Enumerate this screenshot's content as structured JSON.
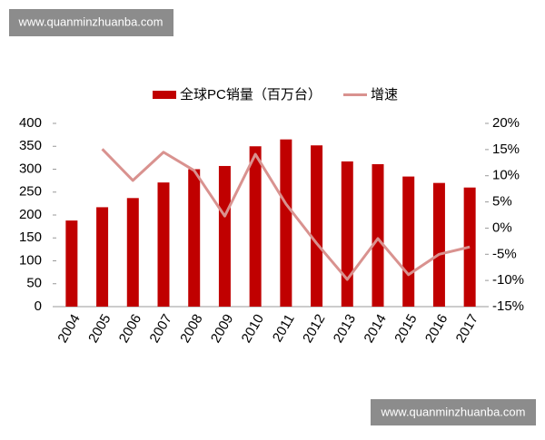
{
  "watermark_top": "www.quanminzhuanba.com",
  "watermark_bottom": "www.quanminzhuanba.com",
  "chart_data": {
    "type": "bar-line",
    "categories": [
      "2004",
      "2005",
      "2006",
      "2007",
      "2008",
      "2009",
      "2010",
      "2011",
      "2012",
      "2013",
      "2014",
      "2015",
      "2016",
      "2017"
    ],
    "series": [
      {
        "name": "全球PC销量（百万台）",
        "color": "#c00000",
        "type": "bar",
        "values": [
          188,
          217,
          237,
          271,
          300,
          307,
          350,
          365,
          352,
          317,
          311,
          284,
          270,
          260
        ]
      },
      {
        "name": "增速",
        "color": "#d9928f",
        "type": "line",
        "axis": "y2",
        "values": [
          null,
          15.1,
          9.1,
          14.5,
          11,
          2.3,
          14.1,
          4.6,
          -2.9,
          -9.8,
          -2,
          -8.9,
          -5,
          -3.6
        ]
      }
    ],
    "ylim": [
      0,
      400
    ],
    "yticks": [
      0,
      50,
      100,
      150,
      200,
      250,
      300,
      350,
      400
    ],
    "y2lim": [
      -15,
      20
    ],
    "y2ticks": [
      {
        "value": -15,
        "label": "-15%"
      },
      {
        "value": -10,
        "label": "-10%"
      },
      {
        "value": -5,
        "label": "-5%"
      },
      {
        "value": 0,
        "label": "0%"
      },
      {
        "value": 5,
        "label": "5%"
      },
      {
        "value": 10,
        "label": "10%"
      },
      {
        "value": 15,
        "label": "15%"
      },
      {
        "value": 20,
        "label": "20%"
      }
    ],
    "grid": false
  }
}
